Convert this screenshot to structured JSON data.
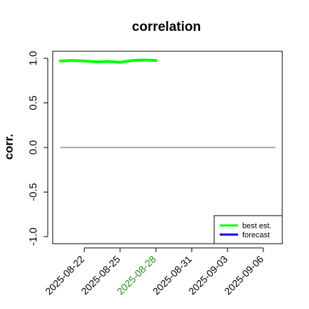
{
  "chart_data": {
    "type": "line",
    "title": "correlation",
    "xlabel": "",
    "ylabel": "corr.",
    "ylim": [
      -1.0,
      1.0
    ],
    "yticks": [
      "-1.0",
      "-0.5",
      "0.0",
      "0.5",
      "1.0"
    ],
    "xlim": [
      "2025-08-19",
      "2025-09-07"
    ],
    "xticks": [
      {
        "date": "2025-08-22",
        "label": "2025-08-22",
        "color": "#000000"
      },
      {
        "date": "2025-08-25",
        "label": "2025-08-25",
        "color": "#000000"
      },
      {
        "date": "2025-08-28",
        "label": "2025-08-28",
        "color": "#228B22"
      },
      {
        "date": "2025-08-31",
        "label": "2025-08-31",
        "color": "#000000"
      },
      {
        "date": "2025-09-03",
        "label": "2025-09-03",
        "color": "#000000"
      },
      {
        "date": "2025-09-06",
        "label": "2025-09-06",
        "color": "#000000"
      }
    ],
    "reference_line": {
      "y": 0.0,
      "from": "2025-08-20",
      "to": "2025-09-07",
      "color": "#555555"
    },
    "series": [
      {
        "name": "best est.",
        "color": "#00ff00",
        "x": [
          "2025-08-20",
          "2025-08-21",
          "2025-08-22",
          "2025-08-23",
          "2025-08-24",
          "2025-08-25",
          "2025-08-26",
          "2025-08-27",
          "2025-08-28"
        ],
        "y": [
          0.97,
          0.975,
          0.97,
          0.96,
          0.965,
          0.955,
          0.975,
          0.98,
          0.975
        ]
      },
      {
        "name": "forecast",
        "color": "#0000ff",
        "x": [],
        "y": []
      }
    ],
    "legend": {
      "position": "bottom-right"
    }
  }
}
